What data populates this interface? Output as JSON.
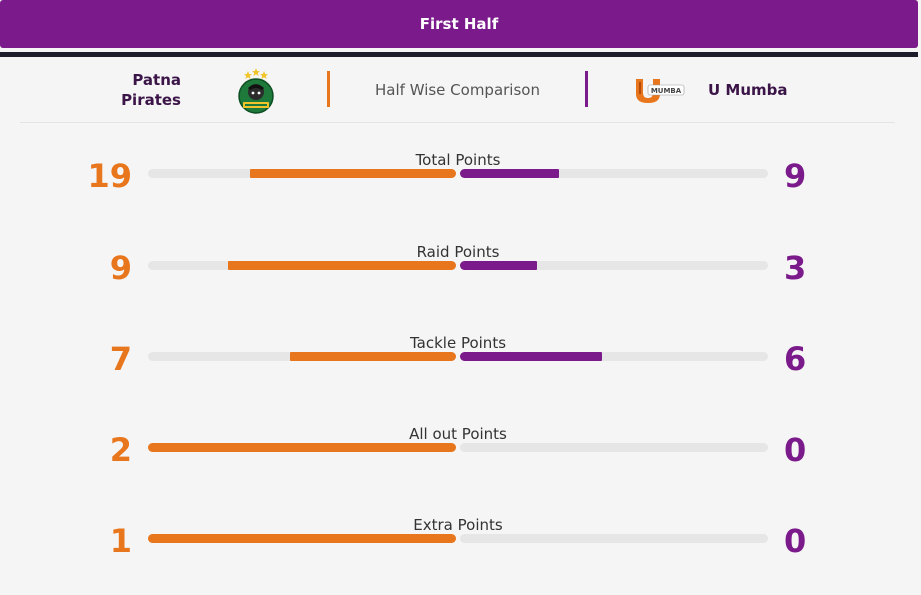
{
  "tab": {
    "label": "First Half"
  },
  "header": {
    "team_left": {
      "name_line1": "Patna",
      "name_line2": "Pirates",
      "logo": "patna-pirates-logo"
    },
    "comparison_label": "Half Wise Comparison",
    "team_right": {
      "name": "U Mumba",
      "logo": "u-mumba-logo",
      "logo_text": "MUMBA"
    }
  },
  "colors": {
    "left": "#e8761c",
    "right": "#7b1a8b",
    "track": "#e6e6e6"
  },
  "stats": [
    {
      "label": "Total Points",
      "left": "19",
      "right": "9",
      "left_fill": 0.67,
      "right_fill": 0.32
    },
    {
      "label": "Raid Points",
      "left": "9",
      "right": "3",
      "left_fill": 0.74,
      "right_fill": 0.25
    },
    {
      "label": "Tackle Points",
      "left": "7",
      "right": "6",
      "left_fill": 0.54,
      "right_fill": 0.46
    },
    {
      "label": "All out Points",
      "left": "2",
      "right": "0",
      "left_fill": 1.0,
      "right_fill": 0.0
    },
    {
      "label": "Extra Points",
      "left": "1",
      "right": "0",
      "left_fill": 1.0,
      "right_fill": 0.0
    }
  ]
}
